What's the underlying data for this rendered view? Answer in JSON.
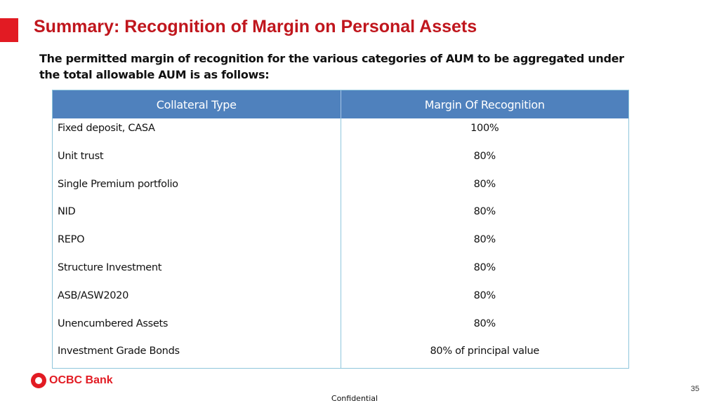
{
  "slide": {
    "title": "Summary: Recognition of Margin on Personal Assets",
    "intro": "The permitted margin of recognition for the various categories of AUM to be aggregated under the total allowable AUM is as follows:",
    "page_number": "35",
    "footer": "Confidential"
  },
  "logo": {
    "text": "OCBC Bank"
  },
  "colors": {
    "title": "#c0161d",
    "header_bg": "#4f81bd",
    "brand": "#e21b23",
    "border": "#8fc6dc"
  },
  "table": {
    "headers": [
      "Collateral Type",
      "Margin Of Recognition"
    ],
    "rows": [
      [
        "Fixed deposit, CASA",
        "100%"
      ],
      [
        "Unit trust",
        "80%"
      ],
      [
        "Single Premium portfolio",
        "80%"
      ],
      [
        "NID",
        "80%"
      ],
      [
        "REPO",
        "80%"
      ],
      [
        "Structure Investment",
        "80%"
      ],
      [
        "ASB/ASW2020",
        "80%"
      ],
      [
        "Unencumbered Assets",
        "80%"
      ],
      [
        "Investment Grade Bonds",
        "80% of principal value"
      ]
    ]
  }
}
